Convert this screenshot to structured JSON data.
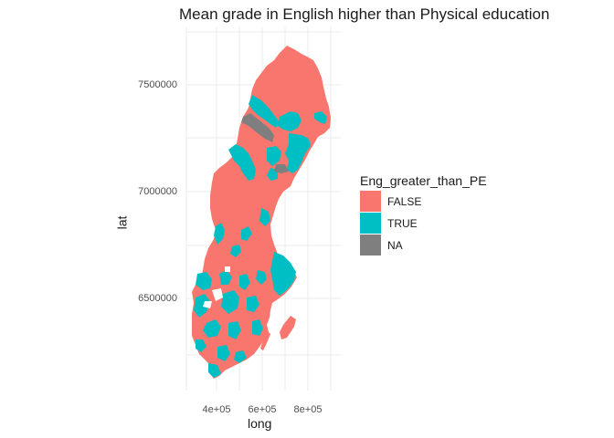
{
  "title": "Mean grade in English higher than Physical education",
  "axes": {
    "x_title": "long",
    "y_title": "lat",
    "x_ticks": [
      "4e+05",
      "6e+05",
      "8e+05"
    ],
    "y_ticks": [
      "6500000",
      "7000000",
      "7500000"
    ]
  },
  "legend": {
    "title": "Eng_greater_than_PE",
    "items": [
      {
        "label": "FALSE",
        "color": "#F8766D"
      },
      {
        "label": "TRUE",
        "color": "#00BFC4"
      },
      {
        "label": "NA",
        "color": "#7F7F7F"
      }
    ]
  },
  "colors": {
    "grid": "#ebebeb",
    "background": "#ffffff"
  }
}
